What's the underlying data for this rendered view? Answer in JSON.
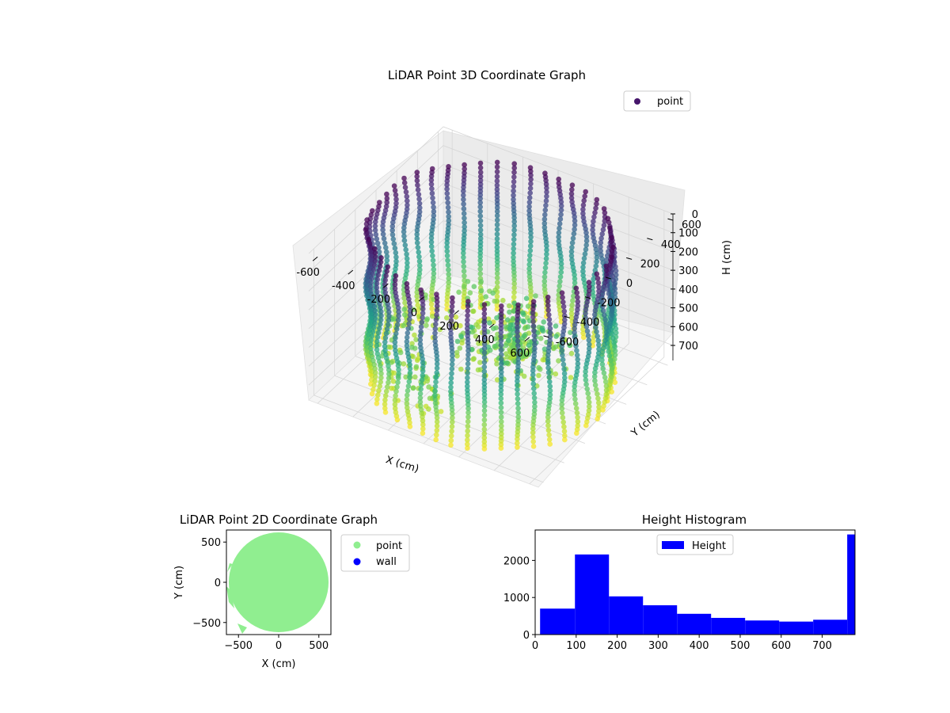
{
  "chart_data": [
    {
      "type": "scatter",
      "dimension": "3d",
      "title": "LiDAR Point 3D Coordinate Graph",
      "xlabel": "X (cm)",
      "ylabel": "Y (cm)",
      "zlabel": "H (cm)",
      "xlim": [
        -650,
        650
      ],
      "ylim": [
        -650,
        650
      ],
      "zlim": [
        0,
        780
      ],
      "z_inverted": true,
      "x_ticks": [
        -600,
        -400,
        -200,
        0,
        200,
        400,
        600
      ],
      "y_ticks": [
        -600,
        -400,
        -200,
        0,
        200,
        400,
        600
      ],
      "z_ticks": [
        0,
        100,
        200,
        300,
        400,
        500,
        600,
        700
      ],
      "colormap": "viridis",
      "grid": true,
      "legend": {
        "placement": "top-right",
        "entries": [
          {
            "label": "point",
            "color": "#46166b"
          }
        ]
      },
      "shape": {
        "description": "cylindrical wall of scanned points",
        "radius": 600,
        "height": 780,
        "columns": 46
      }
    },
    {
      "type": "scatter",
      "title": "LiDAR Point 2D Coordinate Graph",
      "xlabel": "X (cm)",
      "ylabel": "Y (cm)",
      "xlim": [
        -650,
        650
      ],
      "ylim": [
        -650,
        650
      ],
      "x_ticks": [
        -500,
        0,
        500
      ],
      "y_ticks": [
        -500,
        0,
        500
      ],
      "legend": {
        "placement": "outside-right",
        "entries": [
          {
            "label": "point",
            "color": "#90ee90"
          },
          {
            "label": "wall",
            "color": "#0000ff"
          }
        ]
      },
      "shape": {
        "description": "filled disc of points",
        "radius": 600
      }
    },
    {
      "type": "bar",
      "subtype": "histogram",
      "title": "Height Histogram",
      "legend": {
        "placement": "top-center",
        "entries": [
          {
            "label": "Height",
            "color": "#0000ff"
          }
        ]
      },
      "xlim": [
        0,
        780
      ],
      "ylim": [
        0,
        2820
      ],
      "x_ticks": [
        0,
        100,
        200,
        300,
        400,
        500,
        600,
        700
      ],
      "y_ticks": [
        0,
        1000,
        2000
      ],
      "bins": [
        {
          "start": 12,
          "end": 97,
          "count": 700
        },
        {
          "start": 97,
          "end": 180,
          "count": 2160
        },
        {
          "start": 180,
          "end": 263,
          "count": 1030
        },
        {
          "start": 263,
          "end": 346,
          "count": 790
        },
        {
          "start": 346,
          "end": 429,
          "count": 560
        },
        {
          "start": 429,
          "end": 512,
          "count": 450
        },
        {
          "start": 512,
          "end": 595,
          "count": 380
        },
        {
          "start": 595,
          "end": 678,
          "count": 350
        },
        {
          "start": 678,
          "end": 761,
          "count": 400
        },
        {
          "start": 761,
          "end": 780,
          "count": 2700
        }
      ],
      "color": "#0000ff"
    }
  ]
}
